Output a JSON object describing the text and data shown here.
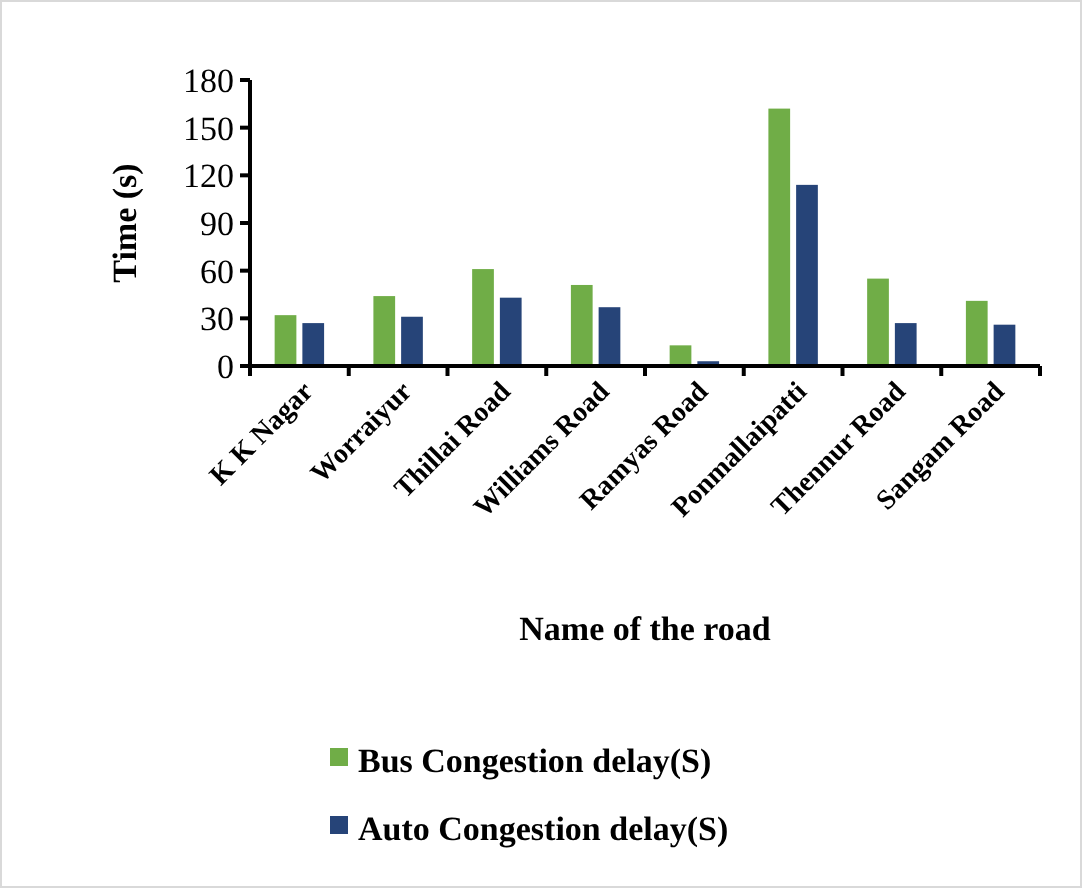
{
  "chart_data": {
    "type": "bar",
    "xlabel": "Name of the road",
    "ylabel": "Time (s)",
    "categories": [
      "K K Nagar",
      "Worraiyur",
      "Thillai Road",
      "Williams Road",
      "Ramyas Road",
      "Ponmallaipatti",
      "Thennur Road",
      "Sangam Road"
    ],
    "series": [
      {
        "name": "Bus Congestion delay(S)",
        "color": "#70ad47",
        "values": [
          32,
          44,
          61,
          51,
          13,
          162,
          55,
          41
        ]
      },
      {
        "name": "Auto Congestion delay(S)",
        "color": "#264478",
        "values": [
          27,
          31,
          43,
          37,
          3,
          114,
          27,
          26
        ]
      }
    ],
    "ylim": [
      0,
      180
    ],
    "yticks": [
      0,
      30,
      60,
      90,
      120,
      150,
      180
    ],
    "legend": "bottom"
  }
}
